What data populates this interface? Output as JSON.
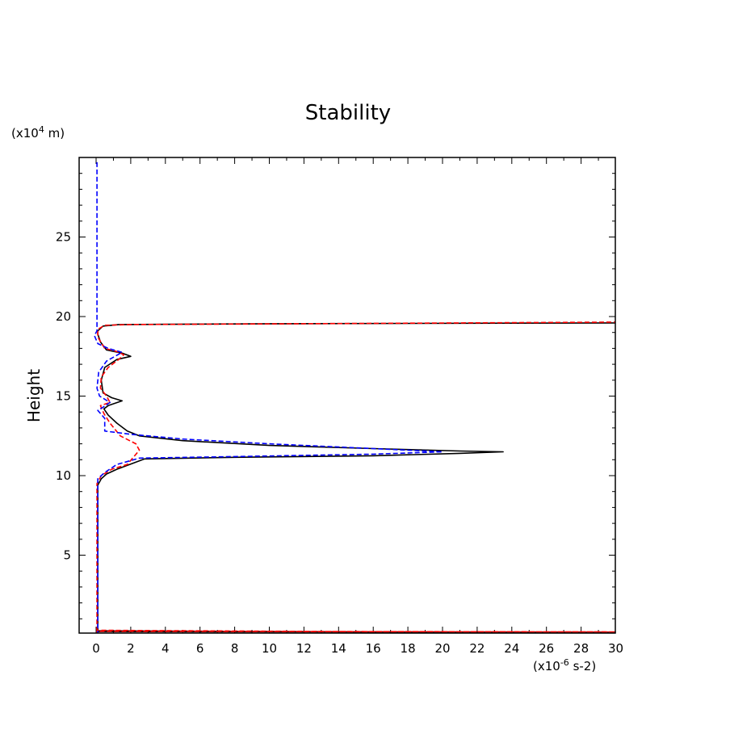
{
  "chart_data": {
    "type": "line",
    "title": "Stability",
    "xlabel": "",
    "ylabel": "Height",
    "x_unit_text": "(x10",
    "x_unit_exp": "-6",
    "x_unit_suffix": " s-2)",
    "y_unit_text": "(x10",
    "y_unit_exp": "4",
    "y_unit_suffix": " m)",
    "xlim": [
      -1,
      30
    ],
    "ylim": [
      0.1,
      30
    ],
    "xticks": [
      0,
      2,
      4,
      6,
      8,
      10,
      12,
      14,
      16,
      18,
      20,
      22,
      24,
      26,
      28,
      30
    ],
    "yticks": [
      5,
      10,
      15,
      20,
      25
    ],
    "grid": false,
    "series": [
      {
        "color": "#000000",
        "dash": "solid",
        "points": [
          [
            0.1,
            0.1
          ],
          [
            0.1,
            0.25
          ],
          [
            14,
            0.18
          ],
          [
            30,
            0.15
          ],
          [
            0.1,
            0.2
          ],
          [
            0.1,
            5
          ],
          [
            0.1,
            9.4
          ],
          [
            0.3,
            9.8
          ],
          [
            0.6,
            10.1
          ],
          [
            1.2,
            10.4
          ],
          [
            2.8,
            11.05
          ],
          [
            8,
            11.15
          ],
          [
            16,
            11.25
          ],
          [
            21,
            11.4
          ],
          [
            23.5,
            11.5
          ],
          [
            21,
            11.55
          ],
          [
            16,
            11.7
          ],
          [
            10,
            11.9
          ],
          [
            5,
            12.2
          ],
          [
            2.5,
            12.5
          ],
          [
            1.8,
            12.8
          ],
          [
            1.2,
            13.3
          ],
          [
            0.7,
            13.8
          ],
          [
            0.45,
            14.2
          ],
          [
            0.7,
            14.4
          ],
          [
            1.5,
            14.7
          ],
          [
            0.9,
            14.9
          ],
          [
            0.4,
            15.2
          ],
          [
            0.3,
            16
          ],
          [
            0.5,
            16.8
          ],
          [
            1.2,
            17.3
          ],
          [
            2,
            17.5
          ],
          [
            1.5,
            17.7
          ],
          [
            0.6,
            17.9
          ],
          [
            0.25,
            18.4
          ],
          [
            0.1,
            18.9
          ],
          [
            0.1,
            19.1
          ],
          [
            0.4,
            19.4
          ],
          [
            1.3,
            19.5
          ],
          [
            10,
            19.55
          ],
          [
            30,
            19.6
          ]
        ]
      },
      {
        "color": "#ff0000",
        "dash": "dashed",
        "points": [
          [
            0.05,
            0.1
          ],
          [
            0.05,
            0.28
          ],
          [
            14,
            0.2
          ],
          [
            30,
            0.18
          ],
          [
            0.05,
            0.22
          ],
          [
            0.05,
            5
          ],
          [
            0.05,
            9.5
          ],
          [
            0.3,
            10
          ],
          [
            0.9,
            10.4
          ],
          [
            1.8,
            10.7
          ],
          [
            2.5,
            11.6
          ],
          [
            2.3,
            12
          ],
          [
            1.4,
            12.5
          ],
          [
            0.8,
            13.3
          ],
          [
            0.45,
            13.9
          ],
          [
            0.25,
            14.4
          ],
          [
            0.8,
            14.6
          ],
          [
            0.6,
            15
          ],
          [
            0.25,
            15.5
          ],
          [
            0.3,
            16.2
          ],
          [
            0.7,
            16.8
          ],
          [
            1.3,
            17.3
          ],
          [
            1.6,
            17.6
          ],
          [
            1.2,
            17.8
          ],
          [
            0.5,
            18
          ],
          [
            0.1,
            18.7
          ],
          [
            0.1,
            19.2
          ],
          [
            0.5,
            19.45
          ],
          [
            2,
            19.5
          ],
          [
            12,
            19.55
          ],
          [
            30,
            19.65
          ]
        ]
      },
      {
        "color": "#0000ff",
        "dash": "dashed",
        "points": [
          [
            0.05,
            29.7
          ],
          [
            0.05,
            19.1
          ],
          [
            -0.1,
            18.8
          ],
          [
            0.1,
            18.3
          ],
          [
            0.7,
            18
          ],
          [
            1.5,
            17.75
          ],
          [
            0.6,
            17.2
          ],
          [
            0.15,
            16.5
          ],
          [
            0.05,
            15.5
          ],
          [
            0.2,
            15
          ],
          [
            0.8,
            14.6
          ],
          [
            0.4,
            14.3
          ],
          [
            0.1,
            14.1
          ],
          [
            0.5,
            13.6
          ],
          [
            0.5,
            13.2
          ],
          [
            0.5,
            12.8
          ],
          [
            2,
            12.6
          ],
          [
            5,
            12.3
          ],
          [
            10,
            12
          ],
          [
            16,
            11.7
          ],
          [
            20,
            11.5
          ],
          [
            16,
            11.35
          ],
          [
            8,
            11.2
          ],
          [
            2.5,
            11.1
          ],
          [
            1.2,
            10.7
          ],
          [
            0.5,
            10.2
          ],
          [
            0.1,
            9.8
          ],
          [
            0.1,
            5
          ],
          [
            0.1,
            0.1
          ]
        ]
      }
    ]
  }
}
